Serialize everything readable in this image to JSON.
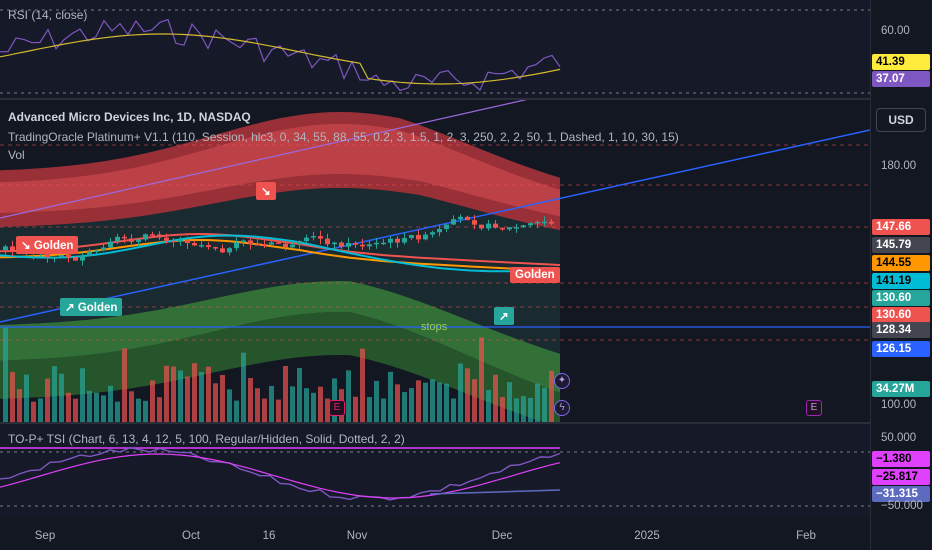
{
  "rsi": {
    "legend": "RSI (14, close)",
    "axis_label": "60.00",
    "rsi_value": "41.39",
    "rsi_ma_value": "37.07"
  },
  "main": {
    "title": "Advanced Micro Devices Inc, 1D, NASDAQ",
    "indicator": "TradingOracle Platinum+ V1.1 (110, Session, hlc3, 0, 34, 55, 88, 55, 0.2, 3, 1.5, 1, 2, 3, 250, 2, 2, 50, 1, Dashed, 1, 10, 30, 15)",
    "vol_label": "Vol",
    "currency": "USD",
    "axis_labels": [
      "180.00",
      "100.00"
    ],
    "price_tags": [
      {
        "text": "147.66",
        "bg": "#ef5350",
        "fg": "#ffffff"
      },
      {
        "text": "145.79",
        "bg": "#434651",
        "fg": "#ffffff"
      },
      {
        "text": "144.55",
        "bg": "#ff9800",
        "fg": "#000000"
      },
      {
        "text": "141.19",
        "bg": "#00bcd4",
        "fg": "#000000"
      },
      {
        "text": "130.60",
        "bg": "#26a69a",
        "fg": "#ffffff"
      },
      {
        "text": "130.60",
        "bg": "#ef5350",
        "fg": "#ffffff"
      },
      {
        "text": "128.34",
        "bg": "#434651",
        "fg": "#ffffff"
      },
      {
        "text": "126.15",
        "bg": "#2962ff",
        "fg": "#ffffff"
      },
      {
        "text": "34.27M",
        "bg": "#26a69a",
        "fg": "#ffffff"
      }
    ],
    "signals": [
      {
        "text": "↘ Golden",
        "kind": "sell"
      },
      {
        "text": "↗ Golden",
        "kind": "buy"
      },
      {
        "text": "Golden",
        "kind": "sell"
      },
      {
        "text": "↘",
        "kind": "sell"
      },
      {
        "text": "↗",
        "kind": "buy"
      }
    ],
    "stops_label": "stops",
    "earnings_badge": "E"
  },
  "tsi": {
    "legend": "TO-P+ TSI (Chart, 6, 13, 4, 12, 5, 100, Regular/Hidden, Solid, Dotted, 2, 2)",
    "axis_labels": [
      "50.000",
      "−50.000"
    ],
    "tags": [
      {
        "text": "−1.380",
        "bg": "#e040fb",
        "fg": "#000000"
      },
      {
        "text": "−25.817",
        "bg": "#e040fb",
        "fg": "#000000"
      },
      {
        "text": "−31.315",
        "bg": "#5c6bc0",
        "fg": "#ffffff"
      }
    ]
  },
  "x_axis": [
    "Sep",
    "Oct",
    "16",
    "Nov",
    "Dec",
    "2025",
    "Feb"
  ],
  "colors": {
    "bull": "#26a69a",
    "bear": "#ef5350",
    "trend_line": "#2962ff",
    "rsi_line": "#7e57c2",
    "rsi_ma": "#d4b830"
  }
}
